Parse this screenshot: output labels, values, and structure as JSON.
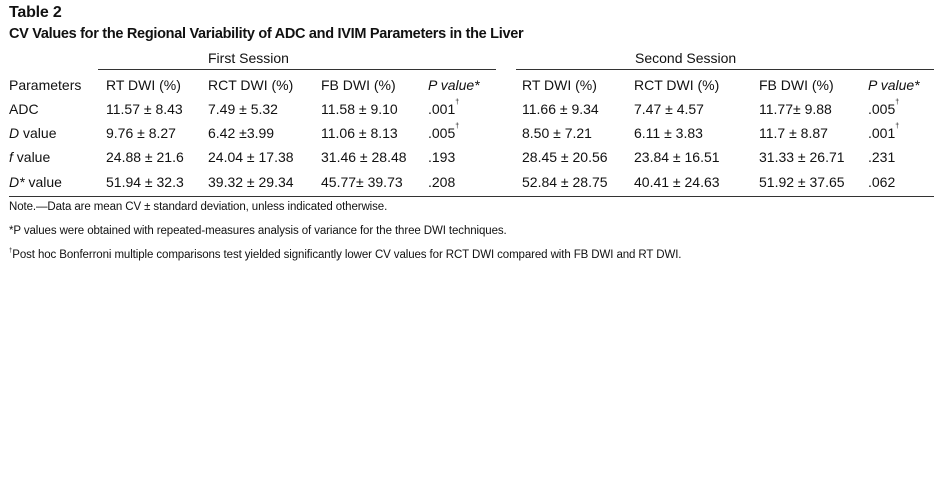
{
  "table": {
    "label": "Table 2",
    "title": "CV Values for the Regional Variability of ADC and IVIM Parameters in the Liver",
    "sessions": [
      "First Session",
      "Second Session"
    ],
    "columns": [
      "Parameters",
      "RT DWI (%)",
      "RCT DWI (%)",
      "FB DWI (%)",
      "P value*",
      "RT DWI (%)",
      "RCT DWI (%)",
      "FB DWI (%)",
      "P value*"
    ],
    "rows": [
      {
        "param": "ADC",
        "param_italic": "",
        "param_rest": "",
        "cells": [
          "11.57 ± 8.43",
          "7.49 ± 5.32",
          "11.58 ± 9.10",
          ".001",
          "11.66 ± 9.34",
          "7.47 ± 4.57",
          "11.77± 9.88",
          ".005"
        ],
        "sup1": "†",
        "sup2": "†"
      },
      {
        "param": "",
        "param_italic": "D",
        "param_rest": " value",
        "cells": [
          "9.76 ± 8.27",
          "6.42 ±3.99",
          "11.06 ± 8.13",
          ".005",
          "8.50 ± 7.21",
          "6.11 ± 3.83",
          "11.7 ± 8.87",
          ".001"
        ],
        "sup1": "†",
        "sup2": "†"
      },
      {
        "param": "",
        "param_italic": "f",
        "param_rest": " value",
        "cells": [
          "24.88 ± 21.6",
          "24.04 ± 17.38",
          "31.46 ± 28.48",
          ".193",
          "28.45 ± 20.56",
          "23.84 ± 16.51",
          "31.33 ± 26.71",
          ".231"
        ],
        "sup1": "",
        "sup2": ""
      },
      {
        "param": "",
        "param_italic": "D*",
        "param_rest": " value",
        "cells": [
          "51.94 ± 32.3",
          "39.32 ± 29.34",
          "45.77± 39.73",
          ".208",
          "52.84 ± 28.75",
          "40.41 ± 24.63",
          "51.92 ± 37.65",
          ".062"
        ],
        "sup1": "",
        "sup2": ""
      }
    ]
  },
  "notes": {
    "note1": "Note.—Data are mean CV ± standard deviation, unless indicated otherwise.",
    "note2": "*P values were obtained with repeated-measures analysis of variance for the three DWI techniques.",
    "note3_mark": "†",
    "note3": "Post hoc Bonferroni multiple comparisons test yielded significantly lower CV values for RCT DWI compared with FB DWI and RT DWI."
  }
}
